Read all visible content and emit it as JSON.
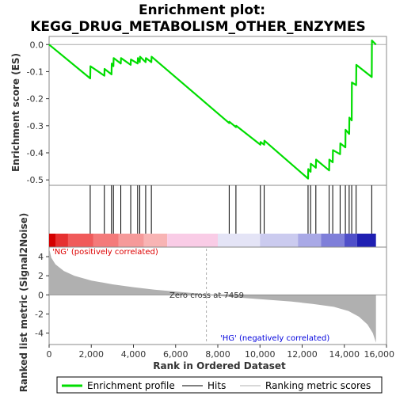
{
  "chart_data": {
    "type": "line",
    "title": [
      "Enrichment plot:",
      "KEGG_DRUG_METABOLISM_OTHER_ENZYMES"
    ],
    "xlabel": "Rank in Ordered Dataset",
    "ylabel_top": "Enrichment score (ES)",
    "ylabel_bottom": "Ranked list metric (Signal2Noise)",
    "xlim": [
      0,
      16000
    ],
    "x_ticks": [
      0,
      2000,
      4000,
      6000,
      8000,
      10000,
      12000,
      14000,
      16000
    ],
    "x_tick_labels": [
      "0",
      "2,000",
      "4,000",
      "6,000",
      "8,000",
      "10,000",
      "12,000",
      "14,000",
      "16,000"
    ],
    "es_ylim": [
      -0.52,
      0.03
    ],
    "es_ticks": [
      0.0,
      -0.1,
      -0.2,
      -0.3,
      -0.4,
      -0.5
    ],
    "es_tick_labels": [
      "0.0",
      "-0.1",
      "-0.2",
      "-0.3",
      "-0.4",
      "-0.5"
    ],
    "metric_ylim": [
      -5.2,
      5.0
    ],
    "metric_ticks": [
      4,
      2,
      0,
      -2,
      -4
    ],
    "metric_tick_labels": [
      "4",
      "2",
      "0",
      "-2",
      "-4"
    ],
    "n_genes": 15500,
    "hits": [
      1950,
      2620,
      2960,
      3050,
      3400,
      3870,
      4200,
      4300,
      4580,
      4850,
      8540,
      8860,
      10020,
      10200,
      12280,
      12400,
      12650,
      13280,
      13450,
      13800,
      14050,
      14230,
      14350,
      14560,
      15300
    ],
    "es_curve_points": [
      [
        0,
        0.0
      ],
      [
        1950,
        -0.125
      ],
      [
        1960,
        -0.08
      ],
      [
        2620,
        -0.115
      ],
      [
        2630,
        -0.09
      ],
      [
        2960,
        -0.11
      ],
      [
        2970,
        -0.07
      ],
      [
        3050,
        -0.08
      ],
      [
        3060,
        -0.05
      ],
      [
        3400,
        -0.07
      ],
      [
        3410,
        -0.05
      ],
      [
        3870,
        -0.075
      ],
      [
        3880,
        -0.055
      ],
      [
        4200,
        -0.07
      ],
      [
        4210,
        -0.05
      ],
      [
        4300,
        -0.065
      ],
      [
        4310,
        -0.045
      ],
      [
        4580,
        -0.065
      ],
      [
        4590,
        -0.05
      ],
      [
        4850,
        -0.065
      ],
      [
        4860,
        -0.045
      ],
      [
        8540,
        -0.29
      ],
      [
        8550,
        -0.285
      ],
      [
        8860,
        -0.305
      ],
      [
        8870,
        -0.3
      ],
      [
        10020,
        -0.37
      ],
      [
        10030,
        -0.36
      ],
      [
        10200,
        -0.37
      ],
      [
        10210,
        -0.355
      ],
      [
        12280,
        -0.495
      ],
      [
        12290,
        -0.46
      ],
      [
        12400,
        -0.47
      ],
      [
        12410,
        -0.44
      ],
      [
        12650,
        -0.455
      ],
      [
        12660,
        -0.425
      ],
      [
        13280,
        -0.465
      ],
      [
        13290,
        -0.425
      ],
      [
        13450,
        -0.435
      ],
      [
        13460,
        -0.39
      ],
      [
        13800,
        -0.405
      ],
      [
        13810,
        -0.365
      ],
      [
        14050,
        -0.38
      ],
      [
        14060,
        -0.315
      ],
      [
        14230,
        -0.33
      ],
      [
        14240,
        -0.27
      ],
      [
        14350,
        -0.28
      ],
      [
        14360,
        -0.14
      ],
      [
        14560,
        -0.15
      ],
      [
        14570,
        -0.075
      ],
      [
        15300,
        -0.12
      ],
      [
        15310,
        0.015
      ],
      [
        15500,
        0.0
      ]
    ],
    "metric_curve_points": [
      [
        0,
        4.9
      ],
      [
        100,
        3.9
      ],
      [
        300,
        3.2
      ],
      [
        700,
        2.5
      ],
      [
        1200,
        2.0
      ],
      [
        2000,
        1.5
      ],
      [
        3000,
        1.1
      ],
      [
        4000,
        0.8
      ],
      [
        5000,
        0.55
      ],
      [
        6000,
        0.35
      ],
      [
        7000,
        0.15
      ],
      [
        7459,
        0.0
      ],
      [
        8500,
        -0.2
      ],
      [
        10000,
        -0.45
      ],
      [
        11500,
        -0.7
      ],
      [
        12500,
        -0.95
      ],
      [
        13500,
        -1.25
      ],
      [
        14200,
        -1.7
      ],
      [
        14700,
        -2.3
      ],
      [
        15100,
        -3.1
      ],
      [
        15350,
        -4.0
      ],
      [
        15500,
        -5.0
      ]
    ],
    "zero_cross_rank": 7459,
    "zero_cross_label": "Zero cross at 7459",
    "pos_label": "'NG' (positively correlated)",
    "neg_label": "'HG' (negatively correlated)",
    "colors": {
      "es_line": "#00dd00",
      "hit_line": "#000000",
      "metric_fill": "#b0b0b0",
      "pos_label": "#dd0000",
      "neg_label": "#0000dd",
      "zero_line": "#aaaaaa"
    },
    "heat_bands": [
      {
        "from": 0,
        "to": 300,
        "color": "#d40000"
      },
      {
        "from": 300,
        "to": 900,
        "color": "#e63030"
      },
      {
        "from": 900,
        "to": 2100,
        "color": "#f05a5a"
      },
      {
        "from": 2100,
        "to": 3300,
        "color": "#f47a7a"
      },
      {
        "from": 3300,
        "to": 4500,
        "color": "#f69a9a"
      },
      {
        "from": 4500,
        "to": 5600,
        "color": "#f8b4b4"
      },
      {
        "from": 5600,
        "to": 8000,
        "color": "#f9cce6"
      },
      {
        "from": 8000,
        "to": 10000,
        "color": "#e4e4f6"
      },
      {
        "from": 10000,
        "to": 11800,
        "color": "#cbcbef"
      },
      {
        "from": 11800,
        "to": 12900,
        "color": "#a9a9e6"
      },
      {
        "from": 12900,
        "to": 14000,
        "color": "#7f7fd9"
      },
      {
        "from": 14000,
        "to": 14600,
        "color": "#4f4fc9"
      },
      {
        "from": 14600,
        "to": 15500,
        "color": "#1f1fb2"
      }
    ],
    "legend": {
      "placement": "bottom",
      "items": [
        "Enrichment profile",
        "Hits",
        "Ranking metric scores"
      ]
    }
  }
}
